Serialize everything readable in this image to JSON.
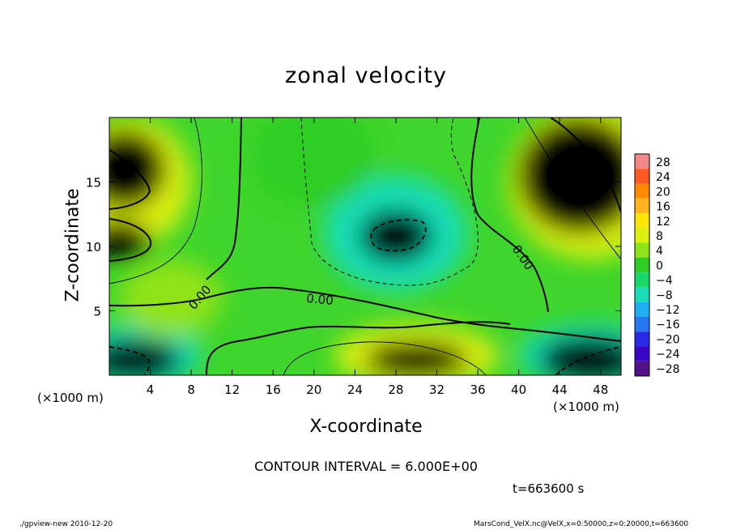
{
  "chart_data": {
    "type": "heatmap",
    "title": "zonal velocity",
    "xlabel": "X-coordinate",
    "ylabel": "Z-coordinate",
    "x_unit_label_left": "(×1000 m)",
    "x_unit_label_right": "(×1000 m)",
    "x_ticks": [
      4,
      8,
      12,
      16,
      20,
      24,
      28,
      32,
      36,
      40,
      44,
      48
    ],
    "y_ticks": [
      5,
      10,
      15
    ],
    "xlim": [
      0,
      50
    ],
    "ylim": [
      0,
      20
    ],
    "colorbar": {
      "labels": [
        "28",
        "24",
        "20",
        "16",
        "12",
        "8",
        "4",
        "0",
        "−4",
        "−8",
        "−12",
        "−16",
        "−20",
        "−24",
        "−28"
      ],
      "colors": [
        "#f38a8a",
        "#fb5a22",
        "#ff8a00",
        "#ffb41e",
        "#ffe60a",
        "#dcf00f",
        "#8fe319",
        "#2fcd23",
        "#19d668",
        "#19ddb5",
        "#1eb0f5",
        "#2877f2",
        "#2a2ae6",
        "#3a05c4",
        "#55118a"
      ]
    },
    "contour_interval_text": "CONTOUR INTERVAL = 6.000E+00",
    "contour_labels": [
      "0.00",
      "0.00",
      "0.00"
    ],
    "time_text": "t=663600 s",
    "footer_left": "./gpview-new   2010-12-20",
    "footer_right": "MarsCond_VelX.nc@VelX,x=0:50000,z=0:20000,t=663600",
    "regions": [
      {
        "name": "upper-left jet core",
        "cx": 1.5,
        "cz": 16,
        "rx": 4,
        "rz": 3,
        "value": 14
      },
      {
        "name": "left mid jet",
        "cx": 1.0,
        "cz": 10.5,
        "rx": 3,
        "rz": 1.5,
        "value": 12
      },
      {
        "name": "upper-right jet core",
        "cx": 46,
        "cz": 15.5,
        "rx": 6,
        "rz": 4.5,
        "value": 15
      },
      {
        "name": "bottom-center core",
        "cx": 30,
        "cz": 1.2,
        "rx": 5,
        "rz": 1.4,
        "value": 14
      },
      {
        "name": "central min",
        "cx": 28,
        "cz": 10.8,
        "rx": 3.5,
        "rz": 2,
        "value": -9
      },
      {
        "name": "bottom-left min",
        "cx": 2.5,
        "cz": 1.2,
        "rx": 4.5,
        "rz": 1.6,
        "value": -10
      },
      {
        "name": "bottom-right min",
        "cx": 47,
        "cz": 1.2,
        "rx": 5,
        "rz": 1.8,
        "value": -11
      }
    ]
  }
}
